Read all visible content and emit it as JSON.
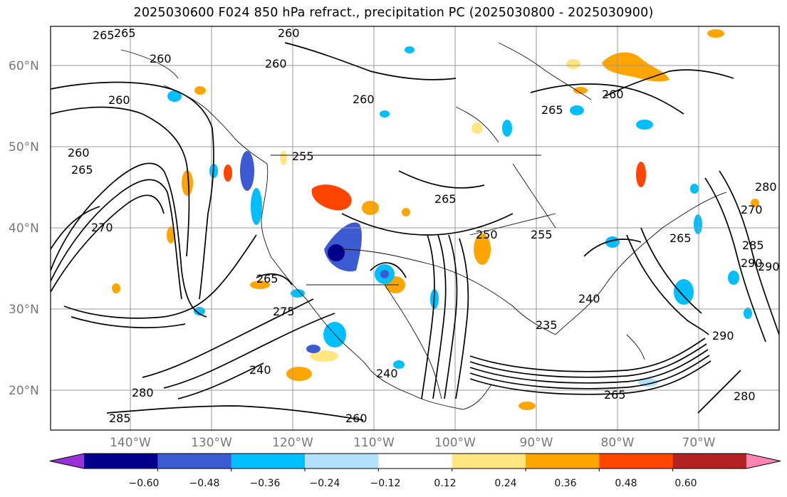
{
  "title": "2025030600 F024 850 hPa refract., precipitation PC (2025030800 - 2025030900)",
  "lat_labels": [
    "60°N",
    "50°N",
    "40°N",
    "30°N",
    "20°N"
  ],
  "lon_labels": [
    "140°W",
    "130°W",
    "120°W",
    "110°W",
    "100°W",
    "90°W",
    "80°W",
    "70°W"
  ],
  "colorbar": {
    "colors": [
      "#9b30d9",
      "#00008b",
      "#3c5ad2",
      "#00bfff",
      "#b3e0fa",
      "#ffffff",
      "#ffe680",
      "#ffa500",
      "#ff4500",
      "#b22222",
      "#ff85b0"
    ],
    "tick_labels": [
      "−0.60",
      "−0.48",
      "−0.36",
      "−0.24",
      "−0.12",
      "0.12",
      "0.24",
      "0.36",
      "0.48",
      "0.60"
    ]
  },
  "contour_labels": [
    "265",
    "265",
    "260",
    "260",
    "260",
    "260",
    "260",
    "260",
    "265",
    "255",
    "265",
    "260",
    "250",
    "255",
    "265",
    "270",
    "280",
    "285",
    "290",
    "240",
    "235",
    "240",
    "275",
    "265",
    "270",
    "280",
    "285",
    "290",
    "290",
    "265",
    "280",
    "240",
    "265",
    "260"
  ]
}
